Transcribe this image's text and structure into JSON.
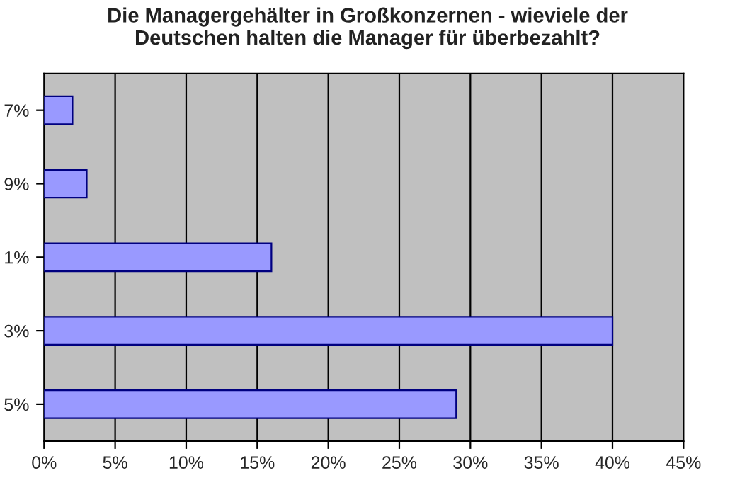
{
  "chart_data": {
    "type": "bar",
    "orientation": "horizontal",
    "title": "Die Managergehälter in Großkonzernen - wieviele der\nDeutschen halten die Manager für überbezahlt?",
    "categories": [
      "7%",
      "9%",
      "1%",
      "3%",
      "5%"
    ],
    "values": [
      2,
      3,
      16,
      40,
      29
    ],
    "color": "#9999ff",
    "xlim": [
      0,
      45
    ],
    "xticks": [
      {
        "value": 0,
        "label": "0%"
      },
      {
        "value": 5,
        "label": "5%"
      },
      {
        "value": 10,
        "label": "10%"
      },
      {
        "value": 15,
        "label": "15%"
      },
      {
        "value": 20,
        "label": "20%"
      },
      {
        "value": 25,
        "label": "25%"
      },
      {
        "value": 30,
        "label": "30%"
      },
      {
        "value": 35,
        "label": "35%"
      },
      {
        "value": 40,
        "label": "40%"
      },
      {
        "value": 45,
        "label": "45%"
      }
    ],
    "grid": "x",
    "legend": false
  }
}
